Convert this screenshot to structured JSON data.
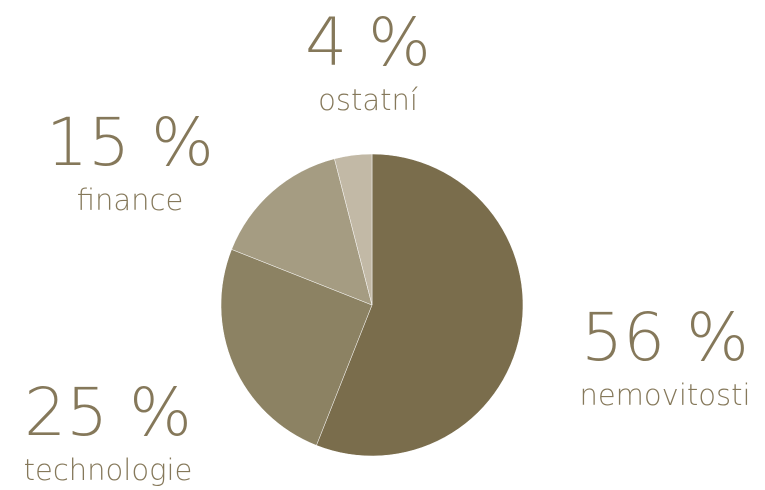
{
  "chart_data": {
    "type": "pie",
    "categories": [
      "nemovitosti",
      "technologie",
      "finance",
      "ostatní"
    ],
    "values": [
      56,
      25,
      15,
      4
    ],
    "value_labels": [
      "56 %",
      "25 %",
      "15 %",
      "4 %"
    ],
    "colors": [
      "#7a6d4c",
      "#8c8263",
      "#a59c82",
      "#c2b9a6"
    ]
  }
}
